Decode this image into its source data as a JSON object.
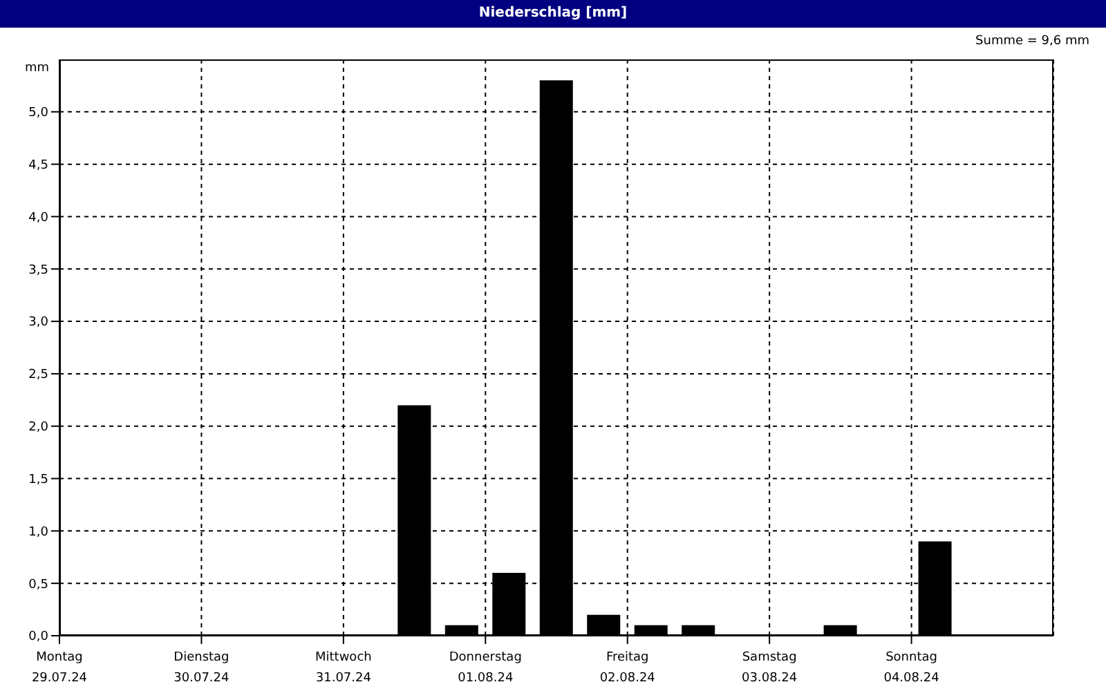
{
  "chart_data": {
    "type": "bar",
    "title": "Niederschlag [mm]",
    "ylabel": "mm",
    "annotations": [
      "Summe = 9,6 mm"
    ],
    "categories": [
      "Montag\n29.07.24",
      null,
      null,
      "Dienstag\n30.07.24",
      null,
      null,
      "Mittwoch\n31.07.24",
      null,
      null,
      "Donnerstag\n01.08.24",
      null,
      null,
      "Freitag\n02.08.24",
      null,
      null,
      "Samstag\n03.08.24",
      null,
      null,
      "Sonntag\n04.08.24",
      null,
      null
    ],
    "series": [
      {
        "color": "#000000",
        "values": [
          0,
          0,
          0,
          0,
          0,
          0,
          0,
          2.2,
          0.1,
          0.6,
          5.3,
          0.2,
          0.1,
          0.1,
          0,
          0,
          0.1,
          0,
          0.9,
          0,
          0
        ]
      }
    ],
    "ylim": [
      0,
      5.5
    ],
    "yticks": [
      {
        "value": 0,
        "label": "0,0"
      },
      {
        "value": 0.5,
        "label": "0,5"
      },
      {
        "value": 1,
        "label": "1,0"
      },
      {
        "value": 1.5,
        "label": "1,5"
      },
      {
        "value": 2,
        "label": "2,0"
      },
      {
        "value": 2.5,
        "label": "2,5"
      },
      {
        "value": 3,
        "label": "3,0"
      },
      {
        "value": 3.5,
        "label": "3,5"
      },
      {
        "value": 4,
        "label": "4,0"
      },
      {
        "value": 4.5,
        "label": "4,5"
      },
      {
        "value": 5,
        "label": "5,0"
      }
    ],
    "grid": true,
    "line_style": "dashed"
  }
}
